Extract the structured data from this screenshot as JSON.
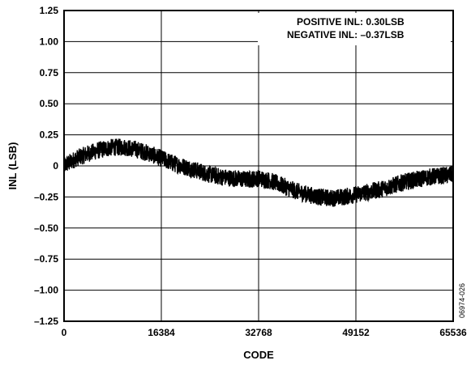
{
  "chart_data": {
    "type": "line",
    "title": "",
    "xlabel": "CODE",
    "ylabel": "INL (LSB)",
    "xlim": [
      0,
      65536
    ],
    "ylim": [
      -1.25,
      1.25
    ],
    "x_ticks": [
      0,
      16384,
      32768,
      49152,
      65536
    ],
    "x_tick_labels": [
      "0",
      "16384",
      "32768",
      "49152",
      "65536"
    ],
    "y_ticks": [
      1.25,
      1.0,
      0.75,
      0.5,
      0.25,
      0,
      -0.25,
      -0.5,
      -0.75,
      -1.0,
      -1.25
    ],
    "y_tick_labels": [
      "1.25",
      "1.00",
      "0.75",
      "0.50",
      "0.25",
      "0",
      "–0.25",
      "–0.50",
      "–0.75",
      "–1.00",
      "–1.25"
    ],
    "grid": true,
    "annotations": [
      "POSITIVE INL: 0.30LSB",
      "NEGATIVE INL: –0.37LSB"
    ],
    "side_label": "06974-026",
    "line_color": "#000000",
    "series": [
      {
        "x": [
          0,
          2048,
          4096,
          6144,
          8192,
          10240,
          12288,
          14336,
          16384,
          18432,
          20480,
          22528,
          24576,
          26624,
          28672,
          30720,
          32768,
          34816,
          36864,
          38912,
          40960,
          43008,
          45056,
          47104,
          49152,
          51200,
          53248,
          55296,
          57344,
          59392,
          61440,
          63488,
          65536
        ],
        "values": [
          0.0,
          0.06,
          0.1,
          0.13,
          0.15,
          0.15,
          0.13,
          0.1,
          0.06,
          0.02,
          -0.01,
          -0.04,
          -0.07,
          -0.09,
          -0.1,
          -0.11,
          -0.1,
          -0.12,
          -0.16,
          -0.2,
          -0.23,
          -0.25,
          -0.26,
          -0.25,
          -0.23,
          -0.21,
          -0.19,
          -0.16,
          -0.13,
          -0.11,
          -0.09,
          -0.08,
          -0.07
        ],
        "noise_band": 0.07
      }
    ]
  }
}
